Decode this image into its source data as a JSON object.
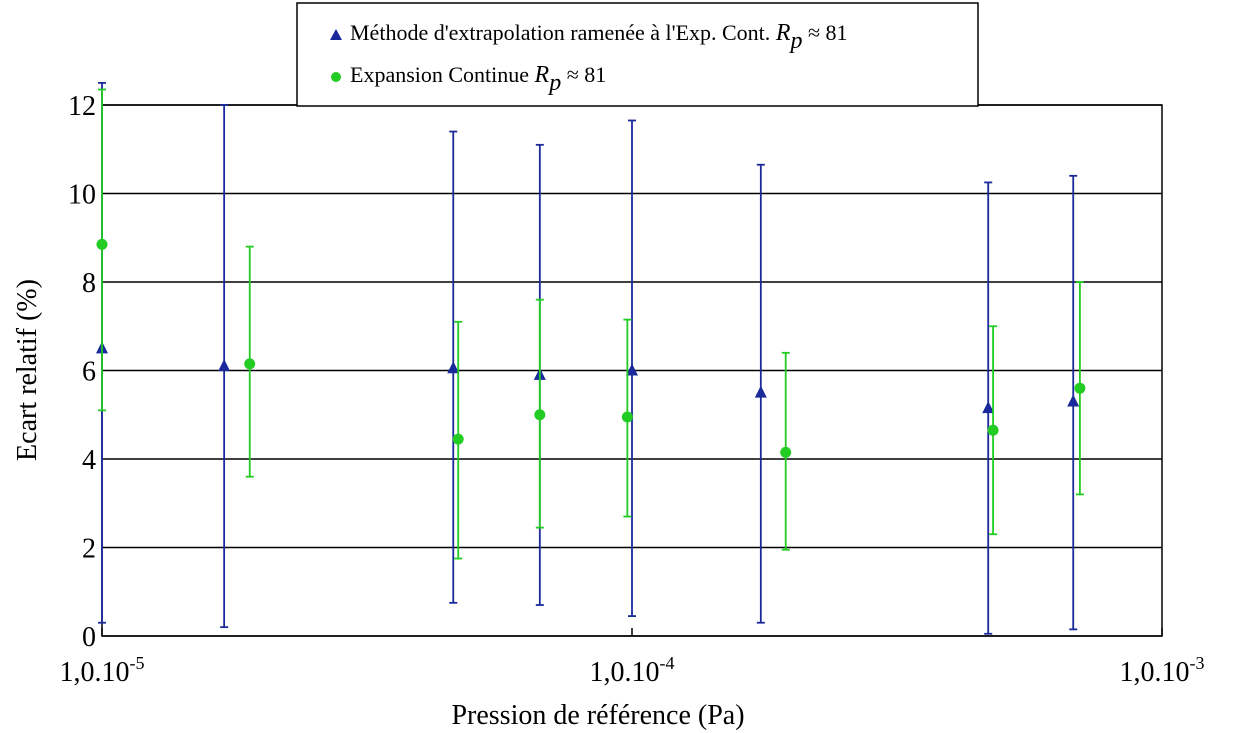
{
  "chart_data": {
    "type": "scatter",
    "xlabel": "Pression de référence (Pa)",
    "ylabel": "Ecart relatif (%)",
    "x_scale": "log",
    "xlim": [
      1e-05,
      0.001
    ],
    "ylim": [
      0,
      12
    ],
    "grid": "horizontal",
    "legend_position": "top",
    "x_tick_labels": [
      {
        "value": 1e-05,
        "base": "1,0.10",
        "exp": "-5"
      },
      {
        "value": 0.0001,
        "base": "1,0.10",
        "exp": "-4"
      },
      {
        "value": 0.001,
        "base": "1,0.10",
        "exp": "-3"
      }
    ],
    "y_ticks": [
      "0",
      "2",
      "4",
      "6",
      "8",
      "10",
      "12"
    ],
    "series": [
      {
        "name": "Méthode d'extrapolation ramenée à l'Exp. Cont.",
        "name_math": "R",
        "name_math_sub": "p",
        "name_suffix": " ≈ 81",
        "marker": "triangle",
        "color": "#1a2a9a",
        "points": [
          {
            "x": 1e-05,
            "y": 6.5,
            "err_low": 0.3,
            "err_high": 12.5
          },
          {
            "x": 1.7e-05,
            "y": 6.1,
            "err_low": 0.2,
            "err_high": 12.0
          },
          {
            "x": 4.6e-05,
            "y": 6.05,
            "err_low": 0.75,
            "err_high": 11.4
          },
          {
            "x": 6.7e-05,
            "y": 5.9,
            "err_low": 0.7,
            "err_high": 11.1
          },
          {
            "x": 0.0001,
            "y": 6.0,
            "err_low": 0.45,
            "err_high": 11.65
          },
          {
            "x": 0.000175,
            "y": 5.5,
            "err_low": 0.3,
            "err_high": 10.65
          },
          {
            "x": 0.00047,
            "y": 5.15,
            "err_low": 0.05,
            "err_high": 10.25
          },
          {
            "x": 0.00068,
            "y": 5.3,
            "err_low": 0.15,
            "err_high": 10.4
          }
        ]
      },
      {
        "name": "Expansion Continue",
        "name_math": "R",
        "name_math_sub": "p",
        "name_suffix": " ≈ 81",
        "marker": "circle",
        "color": "#22cc22",
        "points": [
          {
            "x": 1e-05,
            "y": 8.85,
            "err_low": 5.1,
            "err_high": 12.35
          },
          {
            "x": 1.9e-05,
            "y": 6.15,
            "err_low": 3.6,
            "err_high": 8.8
          },
          {
            "x": 4.7e-05,
            "y": 4.45,
            "err_low": 1.75,
            "err_high": 7.1
          },
          {
            "x": 6.7e-05,
            "y": 5.0,
            "err_low": 2.45,
            "err_high": 7.6
          },
          {
            "x": 9.8e-05,
            "y": 4.95,
            "err_low": 2.7,
            "err_high": 7.15
          },
          {
            "x": 0.000195,
            "y": 4.15,
            "err_low": 1.95,
            "err_high": 6.4
          },
          {
            "x": 0.00048,
            "y": 4.65,
            "err_low": 2.3,
            "err_high": 7.0
          },
          {
            "x": 0.0007,
            "y": 5.6,
            "err_low": 3.2,
            "err_high": 8.0
          }
        ]
      }
    ]
  }
}
